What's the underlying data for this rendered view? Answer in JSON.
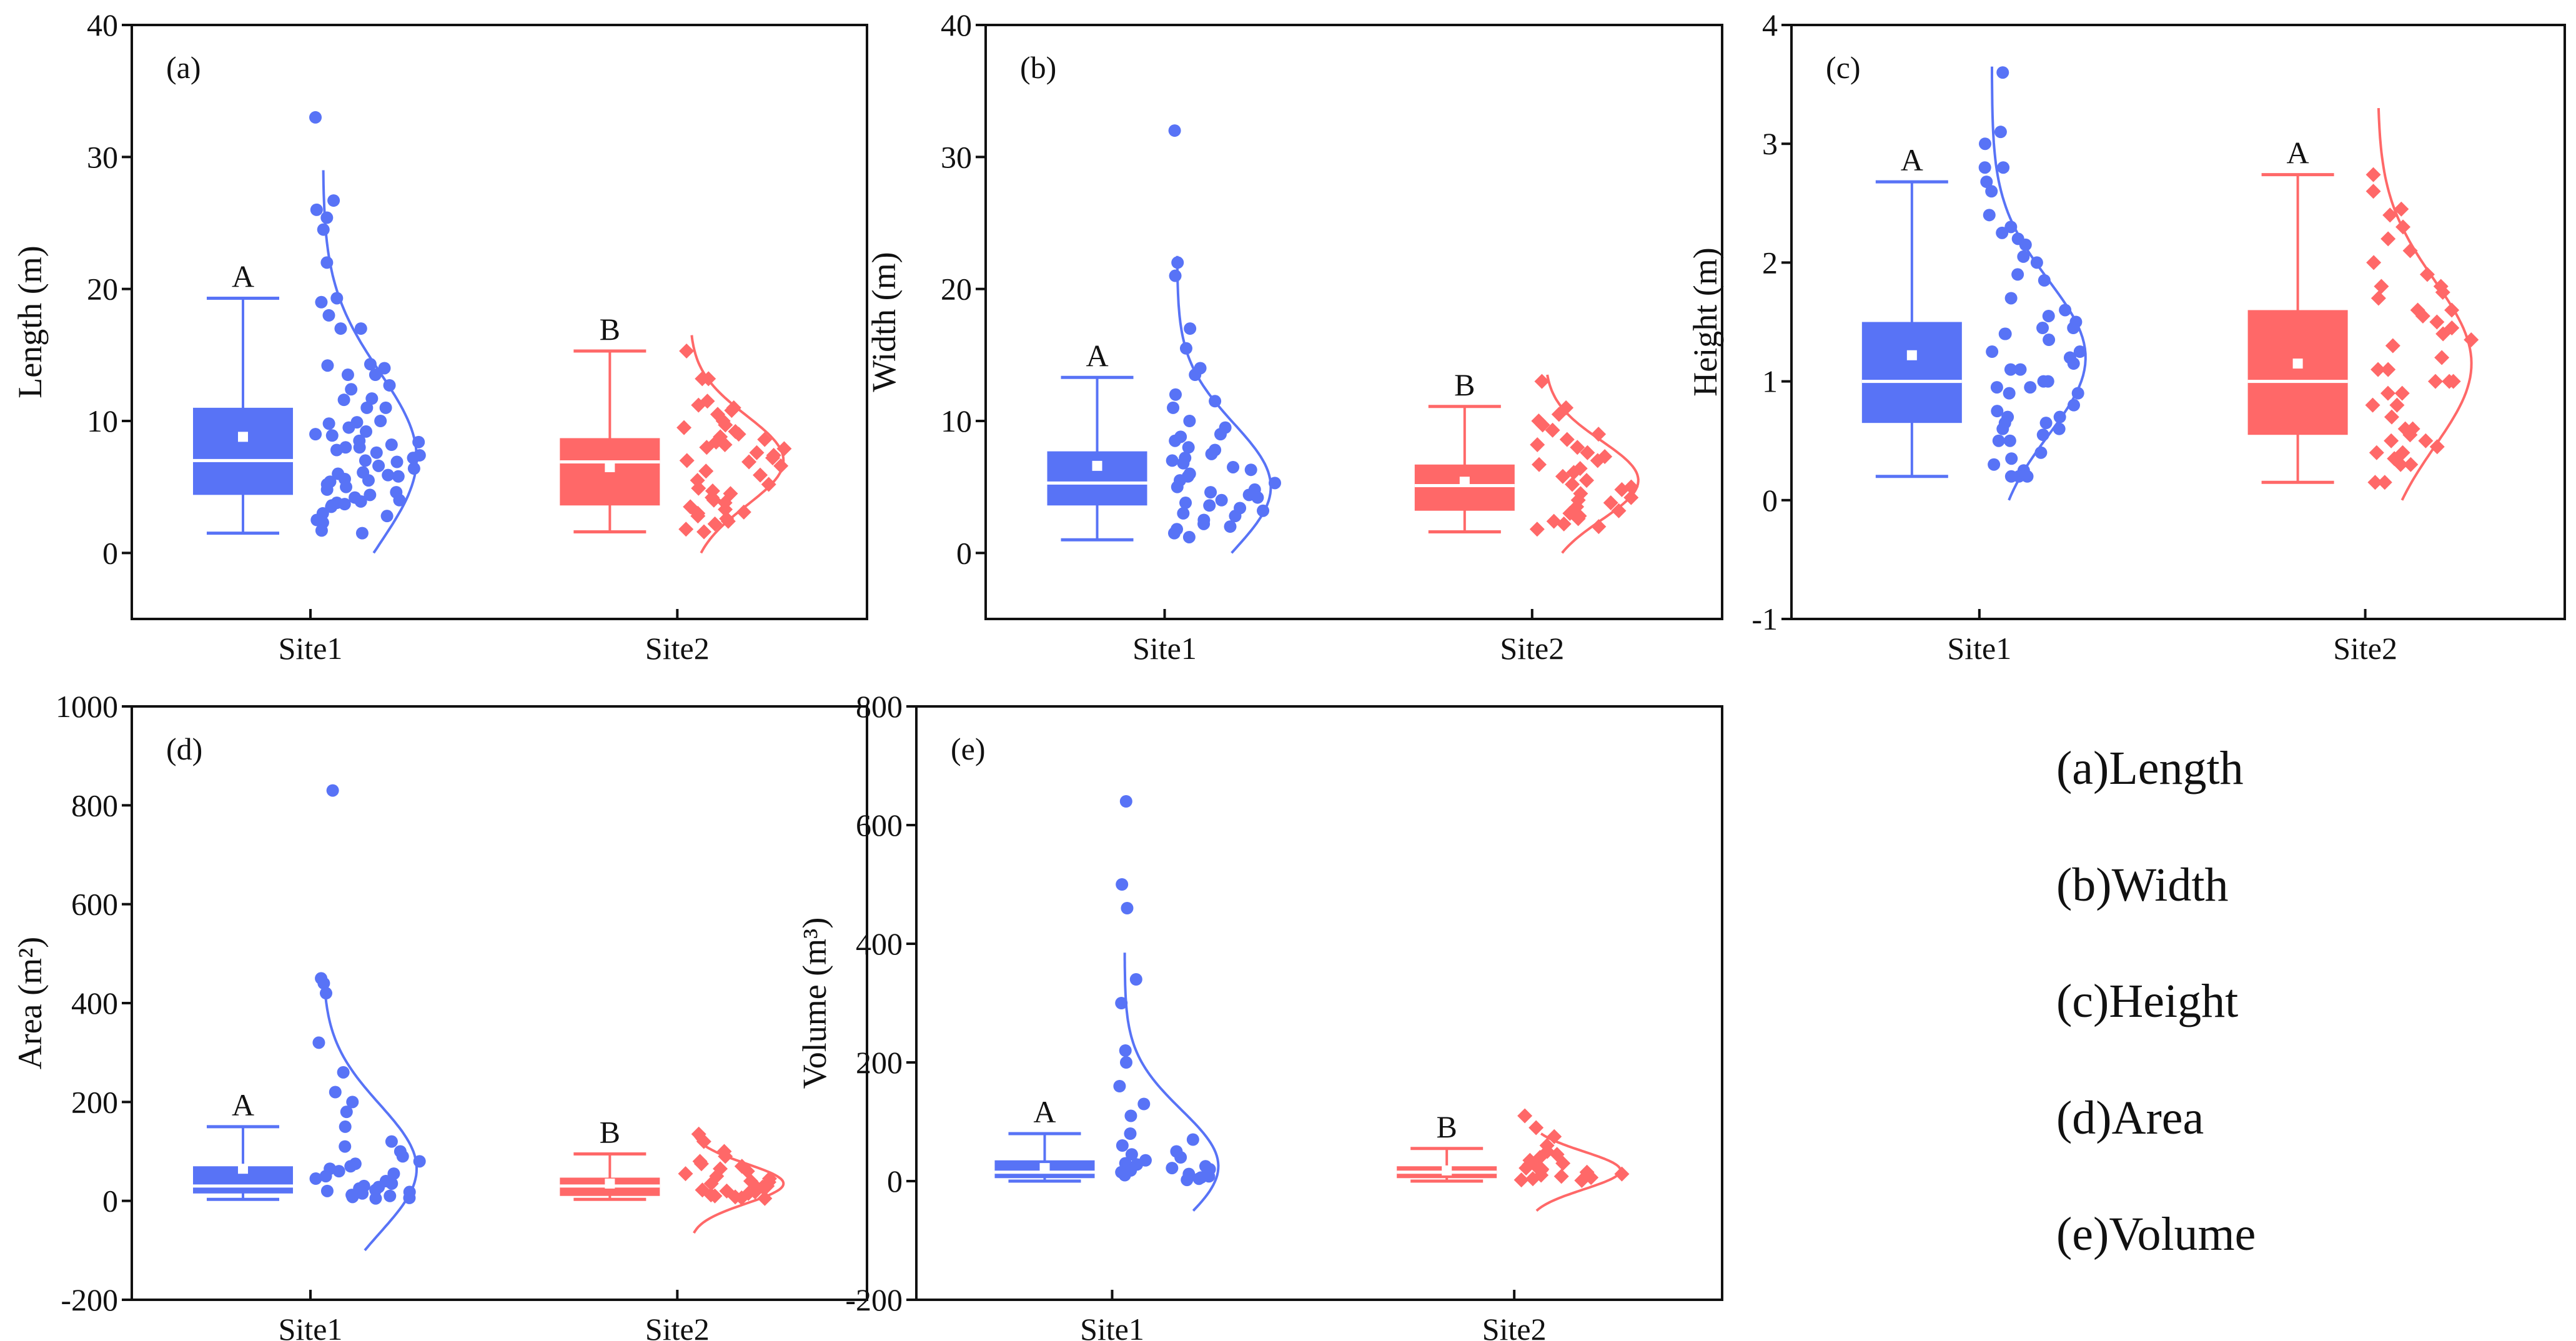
{
  "colors": {
    "site1": "#5873F6",
    "site2": "#FF6868",
    "axis": "#111111"
  },
  "legend": [
    "(a)Length",
    "(b)Width",
    "(c)Height",
    "(d)Area",
    "(e)Volume"
  ],
  "chart_data": [
    {
      "type": "box",
      "panel_label": "(a)",
      "ylabel": "Length (m)",
      "ylim": [
        -5,
        40
      ],
      "yticks": [
        "0",
        "10",
        "20",
        "30",
        "40"
      ],
      "ytick_values": [
        0,
        10,
        20,
        30,
        40
      ],
      "categories": [
        "Site1",
        "Site2"
      ],
      "series": [
        {
          "name": "Site1",
          "letter": "A",
          "min": 1.5,
          "q1": 4.4,
          "median": 7.0,
          "mean": 8.8,
          "q3": 11.0,
          "max": 19.3,
          "curve": {
            "mu": 7.2,
            "sigma": 6.5,
            "from": 0,
            "to": 29
          },
          "points": [
            33,
            26.7,
            26,
            25.4,
            24.5,
            22,
            19.3,
            19,
            18,
            17,
            17,
            14.3,
            14.2,
            14,
            13.5,
            13.5,
            12.7,
            12.4,
            11.7,
            11.6,
            11,
            11,
            10,
            9.9,
            9.8,
            9.5,
            9.2,
            9,
            8.9,
            8.5,
            8.4,
            8.2,
            8,
            8,
            7.8,
            7.6,
            7.4,
            7.2,
            7,
            6.9,
            6.6,
            6.4,
            6.1,
            6,
            5.9,
            5.8,
            5.6,
            5.5,
            5.4,
            5.2,
            5,
            4.8,
            4.6,
            4.4,
            4.2,
            4,
            3.9,
            3.8,
            3.7,
            3.6,
            3.5,
            3,
            2.8,
            2.5,
            2.3,
            1.7,
            1.5
          ]
        },
        {
          "name": "Site2",
          "letter": "B",
          "min": 1.6,
          "q1": 3.6,
          "median": 6.9,
          "mean": 6.5,
          "q3": 8.7,
          "max": 15.3,
          "curve": {
            "mu": 7.0,
            "sigma": 3.4,
            "from": 0,
            "to": 16.5
          },
          "points": [
            15.3,
            13.2,
            13.2,
            11.5,
            11.2,
            11,
            10.8,
            10.5,
            10,
            9.7,
            9.5,
            9.2,
            9,
            8.8,
            8.6,
            8.4,
            8.2,
            8,
            7.9,
            7.6,
            7.4,
            7.2,
            7,
            6.9,
            6.6,
            6.2,
            5.9,
            5.5,
            5.2,
            4.9,
            4.7,
            4.5,
            4.2,
            4,
            3.8,
            3.5,
            3.3,
            3.1,
            3,
            2.8,
            2.6,
            2.4,
            2.2,
            1.8,
            1.6
          ]
        }
      ]
    },
    {
      "type": "box",
      "panel_label": "(b)",
      "ylabel": "Width (m)",
      "ylim": [
        -5,
        40
      ],
      "yticks": [
        "0",
        "10",
        "20",
        "30",
        "40"
      ],
      "ytick_values": [
        0,
        10,
        20,
        30,
        40
      ],
      "categories": [
        "Site1",
        "Site2"
      ],
      "series": [
        {
          "name": "Site1",
          "letter": "A",
          "min": 1.0,
          "q1": 3.6,
          "median": 5.3,
          "mean": 6.6,
          "q3": 7.7,
          "max": 13.3,
          "curve": {
            "mu": 5.0,
            "sigma": 4.8,
            "from": 0,
            "to": 22.5
          },
          "points": [
            32,
            22,
            21,
            17,
            15.5,
            14,
            13.5,
            12,
            11.5,
            11,
            10,
            9.5,
            9,
            8.8,
            8.5,
            8,
            7.8,
            7.5,
            7.2,
            7,
            6.8,
            6.5,
            6.3,
            6,
            5.8,
            5.5,
            5.3,
            5,
            4.8,
            4.6,
            4.4,
            4.2,
            4,
            3.8,
            3.6,
            3.4,
            3.2,
            3,
            2.8,
            2.5,
            2.2,
            2,
            1.8,
            1.5,
            1.2
          ]
        },
        {
          "name": "Site2",
          "letter": "B",
          "min": 1.6,
          "q1": 3.2,
          "median": 5.1,
          "mean": 5.4,
          "q3": 6.7,
          "max": 11.1,
          "curve": {
            "mu": 5.5,
            "sigma": 3.0,
            "from": 0,
            "to": 13.5
          },
          "points": [
            13,
            11,
            10.5,
            10,
            9.7,
            9.3,
            9,
            8.6,
            8.2,
            8,
            7.6,
            7.3,
            7,
            6.7,
            6.4,
            6.1,
            5.8,
            5.5,
            5.2,
            5,
            4.8,
            4.5,
            4.2,
            4,
            3.8,
            3.5,
            3.2,
            3,
            2.8,
            2.6,
            2.4,
            2.2,
            2,
            1.8
          ]
        }
      ]
    },
    {
      "type": "box",
      "panel_label": "(c)",
      "ylabel": "Height (m)",
      "ylim": [
        -1,
        4
      ],
      "yticks": [
        "-1",
        "0",
        "1",
        "2",
        "3",
        "4"
      ],
      "ytick_values": [
        -1,
        0,
        1,
        2,
        3,
        4
      ],
      "categories": [
        "Site1",
        "Site2"
      ],
      "series": [
        {
          "name": "Site1",
          "letter": "A",
          "min": 0.2,
          "q1": 0.65,
          "median": 1.0,
          "mean": 1.22,
          "q3": 1.5,
          "max": 2.68,
          "curve": {
            "mu": 1.2,
            "sigma": 0.65,
            "from": 0,
            "to": 3.65
          },
          "points": [
            3.6,
            3.1,
            3.0,
            2.8,
            2.8,
            2.68,
            2.6,
            2.4,
            2.3,
            2.25,
            2.2,
            2.15,
            2.05,
            2.0,
            1.9,
            1.85,
            1.7,
            1.6,
            1.55,
            1.5,
            1.45,
            1.45,
            1.4,
            1.4,
            1.35,
            1.25,
            1.25,
            1.2,
            1.15,
            1.1,
            1.1,
            1.0,
            1.0,
            0.95,
            0.95,
            0.9,
            0.9,
            0.8,
            0.75,
            0.7,
            0.7,
            0.65,
            0.65,
            0.6,
            0.6,
            0.55,
            0.5,
            0.5,
            0.4,
            0.35,
            0.3,
            0.25,
            0.2,
            0.2,
            0.2
          ]
        },
        {
          "name": "Site2",
          "letter": "A",
          "min": 0.15,
          "q1": 0.55,
          "median": 1.0,
          "mean": 1.15,
          "q3": 1.6,
          "max": 2.74,
          "curve": {
            "mu": 1.15,
            "sigma": 0.7,
            "from": 0,
            "to": 3.3
          },
          "points": [
            2.74,
            2.6,
            2.45,
            2.4,
            2.3,
            2.2,
            2.1,
            2.0,
            1.9,
            1.8,
            1.8,
            1.75,
            1.7,
            1.6,
            1.6,
            1.55,
            1.5,
            1.45,
            1.4,
            1.35,
            1.3,
            1.2,
            1.1,
            1.1,
            1.0,
            1.0,
            1.0,
            0.9,
            0.9,
            0.8,
            0.8,
            0.7,
            0.6,
            0.6,
            0.55,
            0.5,
            0.5,
            0.45,
            0.4,
            0.4,
            0.35,
            0.3,
            0.3,
            0.15,
            0.15
          ]
        }
      ]
    },
    {
      "type": "box",
      "panel_label": "(d)",
      "ylabel": "Area (m²)",
      "ylim": [
        -200,
        1000
      ],
      "yticks": [
        "-200",
        "0",
        "200",
        "400",
        "600",
        "800",
        "1000"
      ],
      "ytick_values": [
        -200,
        0,
        200,
        400,
        600,
        800,
        1000
      ],
      "categories": [
        "Site1",
        "Site2"
      ],
      "series": [
        {
          "name": "Site1",
          "letter": "A",
          "min": 3,
          "q1": 15,
          "median": 30,
          "mean": 65,
          "q3": 70,
          "max": 150,
          "curve": {
            "mu": 65,
            "sigma": 130,
            "from": -100,
            "to": 450
          },
          "points": [
            830,
            450,
            440,
            420,
            320,
            260,
            220,
            200,
            180,
            150,
            120,
            110,
            100,
            90,
            80,
            75,
            70,
            65,
            60,
            55,
            50,
            45,
            40,
            35,
            30,
            28,
            25,
            22,
            20,
            18,
            15,
            12,
            10,
            8,
            6,
            5
          ]
        },
        {
          "name": "Site2",
          "letter": "B",
          "min": 3,
          "q1": 10,
          "median": 30,
          "mean": 35,
          "q3": 47,
          "max": 95,
          "curve": {
            "mu": 35,
            "sigma": 40,
            "from": -65,
            "to": 135
          },
          "points": [
            135,
            120,
            100,
            90,
            80,
            75,
            70,
            65,
            60,
            55,
            50,
            45,
            40,
            38,
            35,
            30,
            28,
            25,
            22,
            20,
            18,
            15,
            12,
            10,
            8,
            6,
            5
          ]
        }
      ]
    },
    {
      "type": "box",
      "panel_label": "(e)",
      "ylabel": "Volume (m³)",
      "ylim": [
        -200,
        800
      ],
      "yticks": [
        "-200",
        "0",
        "200",
        "400",
        "600",
        "800"
      ],
      "ytick_values": [
        -200,
        0,
        200,
        400,
        600,
        800
      ],
      "categories": [
        "Site1",
        "Site2"
      ],
      "series": [
        {
          "name": "Site1",
          "letter": "A",
          "min": 0,
          "q1": 5,
          "median": 15,
          "mean": 22,
          "q3": 35,
          "max": 80,
          "curve": {
            "mu": 25,
            "sigma": 95,
            "from": -50,
            "to": 385
          },
          "points": [
            640,
            500,
            460,
            340,
            300,
            220,
            200,
            160,
            130,
            110,
            80,
            70,
            60,
            50,
            45,
            40,
            35,
            30,
            28,
            25,
            22,
            20,
            18,
            15,
            12,
            10,
            8,
            6,
            4,
            2
          ]
        },
        {
          "name": "Site2",
          "letter": "B",
          "min": 0,
          "q1": 5,
          "median": 15,
          "mean": 18,
          "q3": 25,
          "max": 55,
          "curve": {
            "mu": 18,
            "sigma": 32,
            "from": -50,
            "to": 80
          },
          "points": [
            110,
            90,
            75,
            60,
            50,
            45,
            40,
            35,
            30,
            28,
            25,
            22,
            20,
            18,
            15,
            12,
            10,
            8,
            6,
            4,
            2,
            1
          ]
        }
      ]
    }
  ]
}
